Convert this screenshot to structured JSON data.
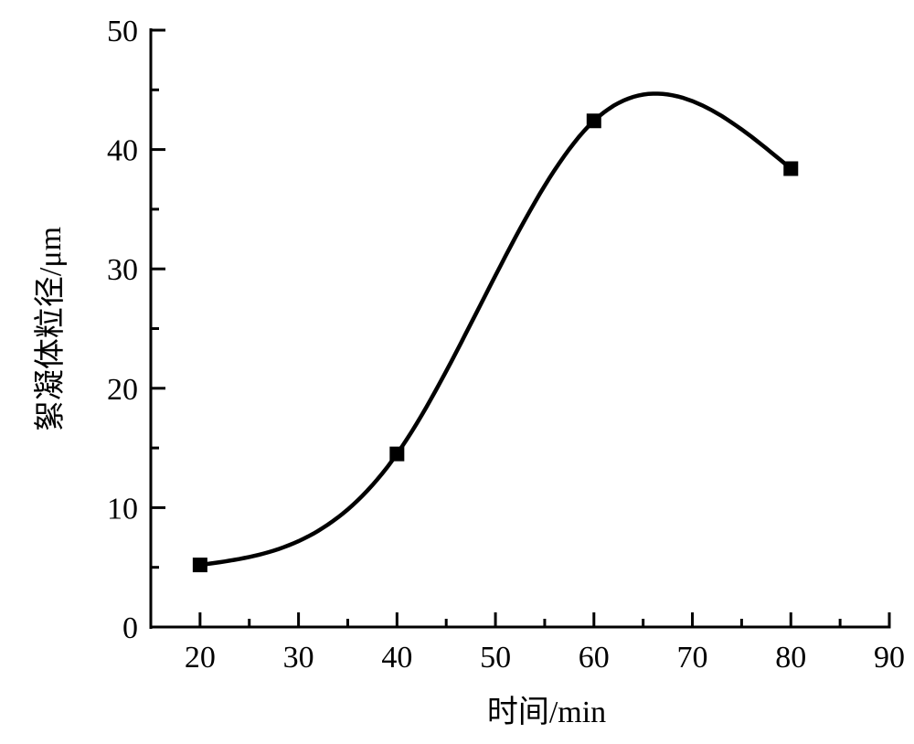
{
  "chart_data": {
    "type": "line",
    "title": "",
    "xlabel": "时间/min",
    "ylabel": "絮凝体粒径/μm",
    "xlim": [
      15,
      90
    ],
    "ylim": [
      0,
      50
    ],
    "xticks": [
      20,
      30,
      40,
      50,
      60,
      70,
      80,
      90
    ],
    "yticks": [
      0,
      10,
      20,
      30,
      40,
      50
    ],
    "grid": false,
    "series": [
      {
        "name": "絮凝体粒径",
        "x": [
          20,
          40,
          60,
          80
        ],
        "y": [
          5.2,
          14.5,
          42.4,
          38.4
        ],
        "marker": "square",
        "line": "spline",
        "color": "#000000"
      }
    ]
  }
}
